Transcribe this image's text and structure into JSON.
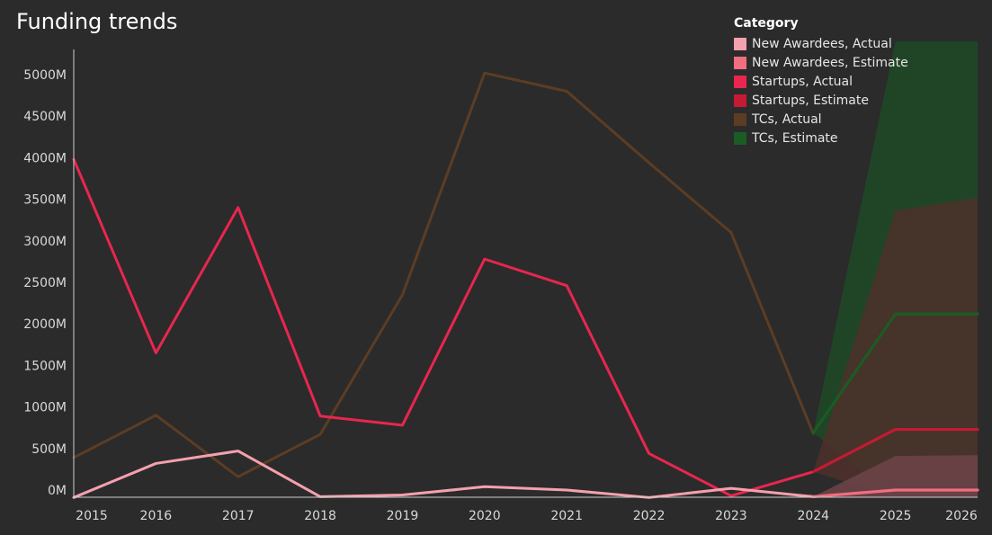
{
  "chart_data": {
    "type": "line",
    "title": "Funding trends",
    "xlabel": "",
    "ylabel": "",
    "x": [
      2015,
      2016,
      2017,
      2018,
      2019,
      2020,
      2021,
      2022,
      2023,
      2024,
      2025,
      2026
    ],
    "x_tick_labels": [
      "2015",
      "2016",
      "2017",
      "2018",
      "2019",
      "2020",
      "2021",
      "2022",
      "2023",
      "2024",
      "2025",
      "2026"
    ],
    "y_tick_values": [
      0,
      500,
      1000,
      1500,
      2000,
      2500,
      3000,
      3500,
      4000,
      4500,
      5000
    ],
    "y_tick_labels": [
      "0M",
      "500M",
      "1000M",
      "1500M",
      "2000M",
      "2500M",
      "3000M",
      "3500M",
      "4000M",
      "4500M",
      "5000M"
    ],
    "xlim": [
      2015,
      2026
    ],
    "ylim": [
      -100,
      5400
    ],
    "y_unit": "M",
    "grid": false,
    "legend_position": "top-right",
    "legend_title": "Category",
    "series": [
      {
        "name": "TCs, Actual",
        "color": "#5c3d24",
        "kind": "line",
        "x": [
          2015,
          2016,
          2017,
          2018,
          2019,
          2020,
          2021,
          2022,
          2023,
          2024
        ],
        "values": [
          390,
          900,
          160,
          670,
          2350,
          5020,
          4800,
          3940,
          3100,
          680
        ]
      },
      {
        "name": "Startups, Actual",
        "color": "#e8264e",
        "kind": "line",
        "x": [
          2015,
          2016,
          2017,
          2018,
          2019,
          2020,
          2021,
          2022,
          2023,
          2024
        ],
        "values": [
          3980,
          1650,
          3400,
          890,
          780,
          2780,
          2460,
          440,
          -70,
          220
        ]
      },
      {
        "name": "New Awardees, Actual",
        "color": "#f4a1ad",
        "kind": "line",
        "x": [
          2015,
          2016,
          2017,
          2018,
          2019,
          2020,
          2021,
          2022,
          2023,
          2024
        ],
        "values": [
          -90,
          320,
          470,
          -80,
          -60,
          40,
          0,
          -90,
          20,
          -80
        ]
      },
      {
        "name": "TCs, Estimate",
        "color": "#1a5c24",
        "kind": "band",
        "x": [
          2024,
          2025,
          2026
        ],
        "values": [
          690,
          2120,
          2120
        ],
        "lower": [
          690,
          -90,
          -90
        ],
        "upper": [
          690,
          5400,
          5400
        ]
      },
      {
        "name": "Startups, Estimate",
        "color": "#c41a33",
        "kind": "band",
        "x": [
          2024,
          2025,
          2026
        ],
        "values": [
          220,
          730,
          730
        ],
        "lower": [
          220,
          -90,
          -90
        ],
        "upper": [
          220,
          3360,
          3520
        ]
      },
      {
        "name": "New Awardees, Estimate",
        "color": "#f06e80",
        "kind": "band",
        "x": [
          2024,
          2025,
          2026
        ],
        "values": [
          -80,
          0,
          0
        ],
        "lower": [
          -80,
          -90,
          -90
        ],
        "upper": [
          -80,
          410,
          420
        ]
      }
    ],
    "band_fill_colors": {
      "TCs, Estimate": "#1f4a26",
      "Startups, Estimate": "#4d302c",
      "New Awardees, Estimate": "#6e444a"
    },
    "legend": [
      {
        "label": "New Awardees, Actual",
        "color": "#f4a1ad"
      },
      {
        "label": "New Awardees, Estimate",
        "color": "#f06e80"
      },
      {
        "label": "Startups, Actual",
        "color": "#e8264e"
      },
      {
        "label": "Startups, Estimate",
        "color": "#c41a33"
      },
      {
        "label": "TCs, Actual",
        "color": "#5c3d24"
      },
      {
        "label": "TCs, Estimate",
        "color": "#1a5c24"
      }
    ]
  }
}
